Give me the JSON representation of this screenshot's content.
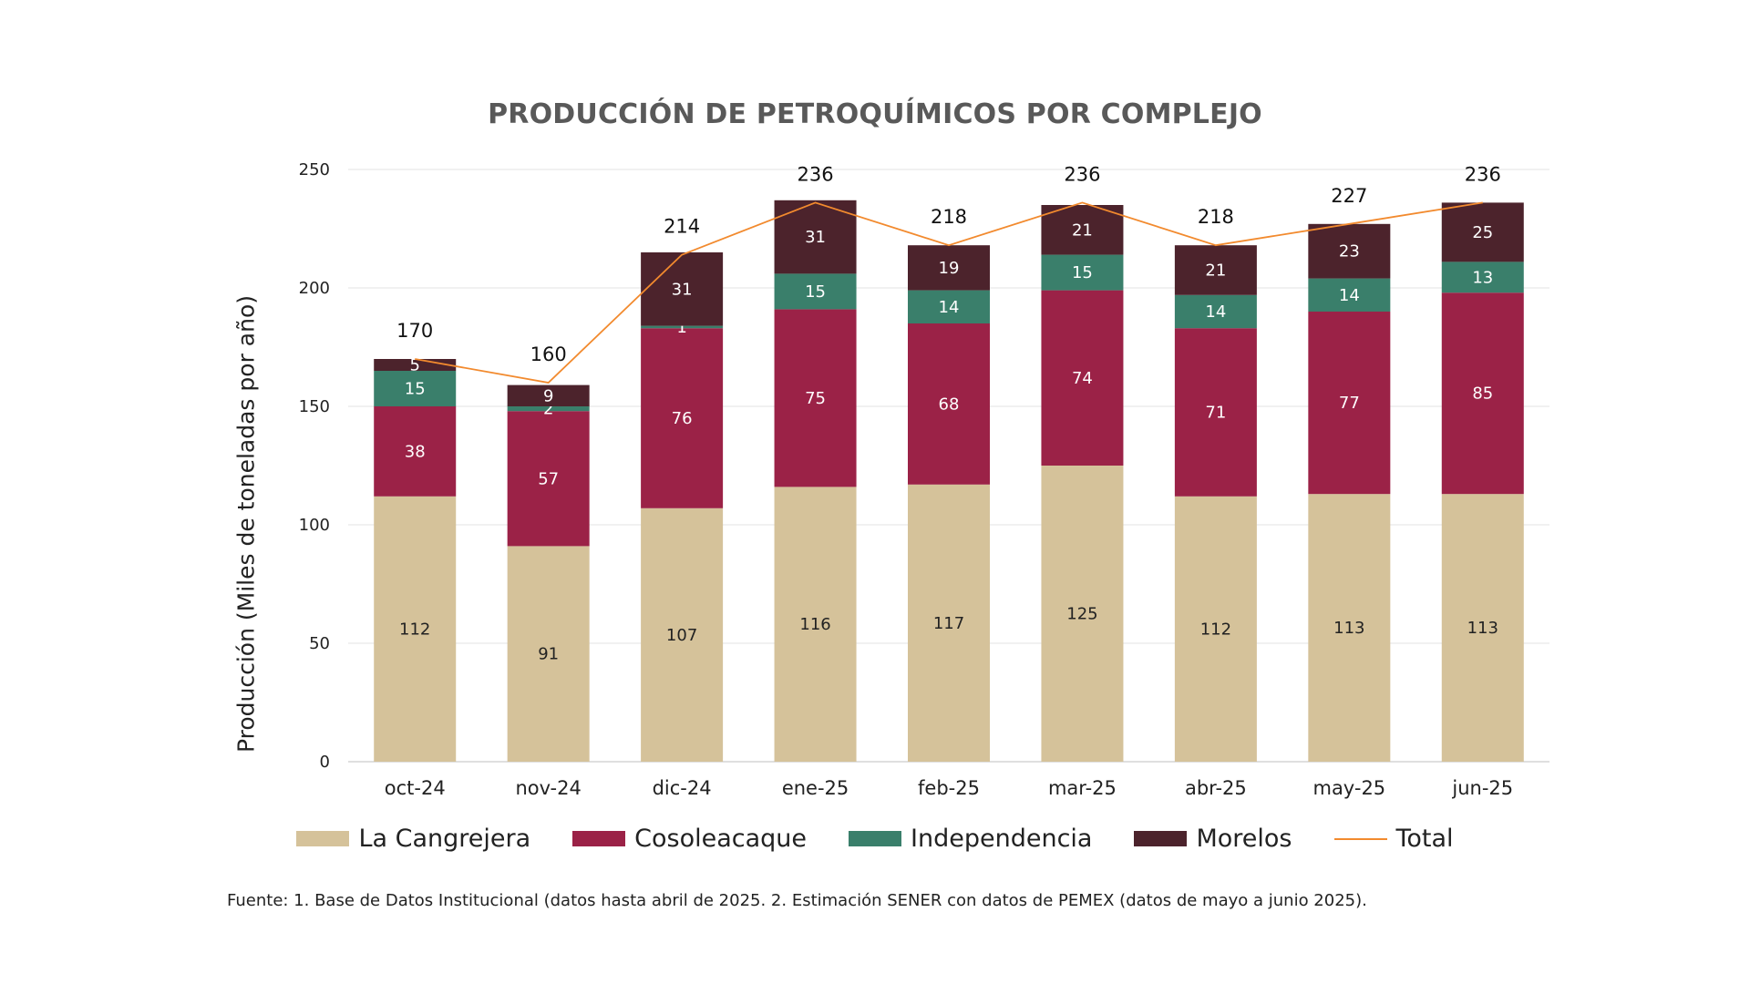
{
  "chart_data": {
    "type": "bar",
    "stacked": true,
    "title": "PRODUCCIÓN DE PETROQUÍMICOS POR COMPLEJO",
    "xlabel": "",
    "ylabel": "Producción (Miles de toneladas por año)",
    "ylim": [
      0,
      250
    ],
    "yticks": [
      0,
      50,
      100,
      150,
      200,
      250
    ],
    "grid": true,
    "legend_position": "bottom",
    "categories": [
      "oct-24",
      "nov-24",
      "dic-24",
      "ene-25",
      "feb-25",
      "mar-25",
      "abr-25",
      "may-25",
      "jun-25"
    ],
    "series": [
      {
        "name": "La Cangrejera",
        "color": "#D5C29A",
        "label_color": "#222222",
        "values": [
          112,
          91,
          107,
          116,
          117,
          125,
          112,
          113,
          113
        ]
      },
      {
        "name": "Cosoleacaque",
        "color": "#9B2247",
        "label_color": "#ffffff",
        "values": [
          38,
          57,
          76,
          75,
          68,
          74,
          71,
          77,
          85
        ]
      },
      {
        "name": "Independencia",
        "color": "#3A7F6B",
        "label_color": "#ffffff",
        "values": [
          15,
          2,
          1,
          15,
          14,
          15,
          14,
          14,
          13
        ]
      },
      {
        "name": "Morelos",
        "color": "#4C232C",
        "label_color": "#ffffff",
        "values": [
          5,
          9,
          31,
          31,
          19,
          21,
          21,
          23,
          25
        ]
      }
    ],
    "line": {
      "name": "Total",
      "color": "#F28A2E",
      "values": [
        170,
        160,
        214,
        236,
        218,
        236,
        218,
        227,
        236
      ]
    }
  },
  "source_note": "Fuente: 1. Base de Datos Institucional (datos hasta abril de 2025. 2. Estimación SENER con datos de PEMEX (datos de mayo a junio 2025)."
}
